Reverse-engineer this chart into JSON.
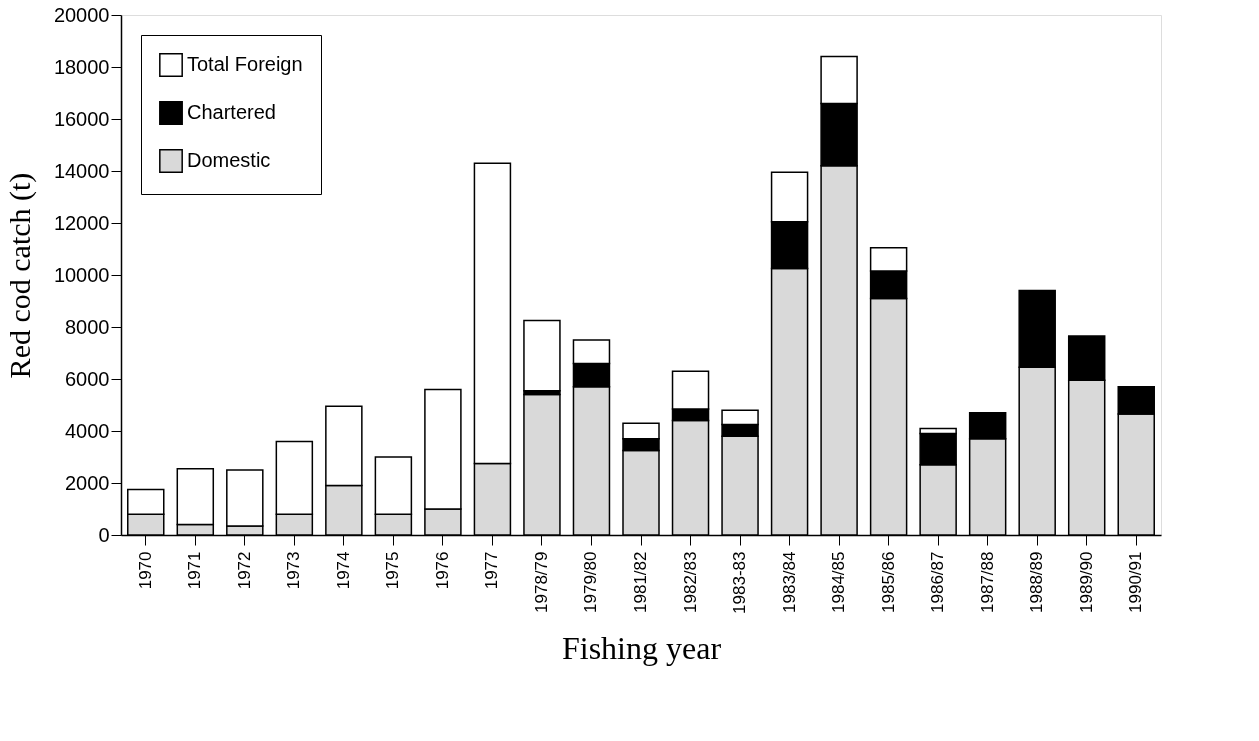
{
  "chart_data": {
    "type": "bar",
    "stacked": true,
    "xlabel": "Fishing year",
    "ylabel": "Red cod catch (t)",
    "categories": [
      "1970",
      "1971",
      "1972",
      "1973",
      "1974",
      "1975",
      "1976",
      "1977",
      "1978/79",
      "1979/80",
      "1981/82",
      "1982/83",
      "1983-83",
      "1983/84",
      "1984/85",
      "1985/86",
      "1986/87",
      "1987/88",
      "1988/89",
      "1989/90",
      "1990/91"
    ],
    "series": [
      {
        "name": "Domestic",
        "color": "#d9d9d9",
        "values": [
          800,
          400,
          350,
          800,
          1900,
          800,
          1000,
          2750,
          5400,
          5700,
          3250,
          4400,
          3800,
          10250,
          14200,
          9100,
          2700,
          3700,
          6450,
          5950,
          4650
        ]
      },
      {
        "name": "Chartered",
        "color": "#000000",
        "values": [
          null,
          null,
          null,
          null,
          null,
          null,
          null,
          null,
          150,
          900,
          450,
          450,
          450,
          1800,
          2400,
          1050,
          1200,
          1000,
          2950,
          1700,
          1050
        ]
      },
      {
        "name": "Total Foreign",
        "color": "#ffffff",
        "values": [
          950,
          2150,
          2150,
          2800,
          3050,
          2200,
          4600,
          11550,
          2700,
          900,
          600,
          1450,
          550,
          1900,
          1800,
          900,
          200,
          null,
          null,
          null,
          null
        ]
      }
    ],
    "ylim": [
      0,
      20000
    ],
    "yticks": [
      0,
      2000,
      4000,
      6000,
      8000,
      10000,
      12000,
      14000,
      16000,
      18000,
      20000
    ],
    "grid": false,
    "legend": "top left"
  }
}
